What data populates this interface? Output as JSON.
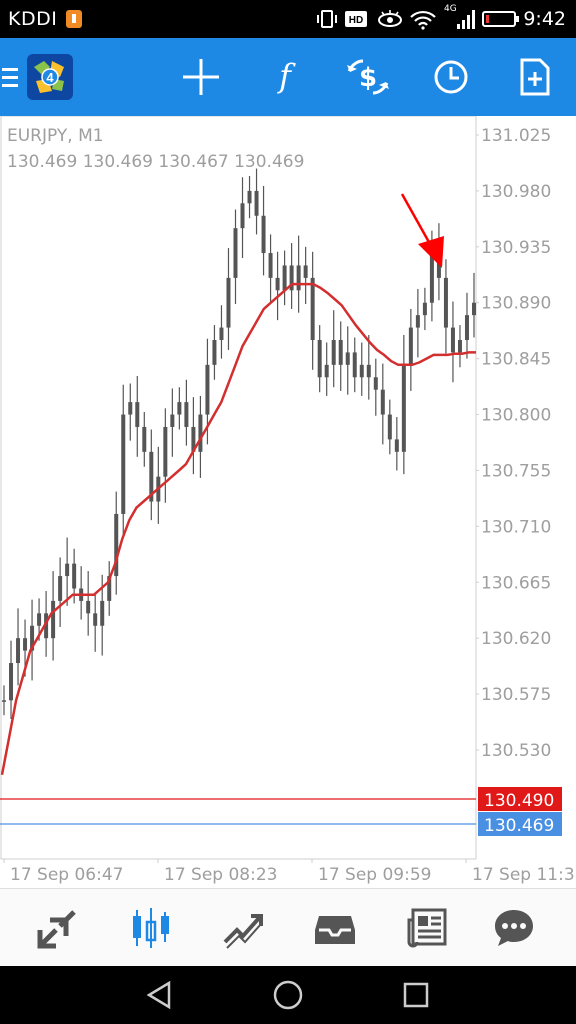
{
  "status_bar": {
    "carrier": "KDDI",
    "network": "4G",
    "time": "9:42"
  },
  "toolbar": {
    "menu_icon": "hamburger-menu-icon",
    "logo": "metatrader-4-logo",
    "items": [
      {
        "name": "crosshair-icon"
      },
      {
        "name": "indicators-icon"
      },
      {
        "name": "trade-icon"
      },
      {
        "name": "timeframe-icon"
      },
      {
        "name": "new-order-icon"
      }
    ]
  },
  "chart": {
    "symbol_title": "EURJPY, M1",
    "ohlc": "130.469 130.469 130.467 130.469",
    "price_labels": [
      "131.025",
      "130.980",
      "130.935",
      "130.890",
      "130.845",
      "130.800",
      "130.755",
      "130.710",
      "130.665",
      "130.620",
      "130.575",
      "130.530"
    ],
    "time_labels": [
      "17 Sep 06:47",
      "17 Sep 08:23",
      "17 Sep 09:59",
      "17 Sep 11:3"
    ],
    "markers": {
      "red_line": {
        "value": "130.490",
        "color": "#e01818"
      },
      "bid_line": {
        "value": "130.469",
        "color": "#4a90e2"
      }
    },
    "colors": {
      "candle": "#555555",
      "ma": "#d32f2f",
      "grid": "#e6e6e6",
      "arrow": "#ff0000"
    }
  },
  "chart_data": {
    "type": "line",
    "xlabel": "",
    "ylabel": "",
    "ylim": [
      130.49,
      131.04
    ],
    "x_ticks": [
      "17 Sep 06:47",
      "17 Sep 08:23",
      "17 Sep 09:59",
      "17 Sep 11:3"
    ],
    "y_ticks": [
      131.025,
      130.98,
      130.935,
      130.89,
      130.845,
      130.8,
      130.755,
      130.71,
      130.665,
      130.62,
      130.575,
      130.53
    ],
    "series": [
      {
        "values": [
          130.57,
          130.6,
          130.62,
          130.61,
          130.63,
          130.64,
          130.62,
          130.65,
          130.67,
          130.68,
          130.66,
          130.65,
          130.64,
          130.63,
          130.65,
          130.67,
          130.72,
          130.8,
          130.81,
          130.79,
          130.77,
          130.73,
          130.75,
          130.79,
          130.8,
          130.81,
          130.79,
          130.77,
          130.8,
          130.84,
          130.86,
          130.87,
          130.91,
          130.95,
          130.97,
          130.98,
          130.96,
          130.93,
          130.91,
          130.9,
          130.92,
          130.9,
          130.92,
          130.91,
          130.86,
          130.83,
          130.84,
          130.86,
          130.84,
          130.85,
          130.83,
          130.84,
          130.83,
          130.82,
          130.8,
          130.78,
          130.77,
          130.84,
          130.87,
          130.88,
          130.89,
          130.93,
          130.91,
          130.87,
          130.85,
          130.86,
          130.88,
          130.89
        ]
      },
      {
        "values": [
          130.51,
          130.54,
          130.57,
          130.59,
          130.61,
          130.62,
          130.63,
          130.64,
          130.645,
          130.65,
          130.655,
          130.655,
          130.655,
          130.655,
          130.66,
          130.665,
          130.68,
          130.7,
          130.715,
          130.725,
          130.73,
          130.735,
          130.74,
          130.745,
          130.75,
          130.755,
          130.76,
          130.77,
          130.78,
          130.79,
          130.8,
          130.81,
          130.825,
          130.84,
          130.855,
          130.865,
          130.875,
          130.885,
          130.89,
          130.895,
          130.9,
          130.905,
          130.905,
          130.905,
          130.905,
          130.902,
          130.898,
          130.893,
          130.888,
          130.88,
          130.872,
          130.865,
          130.858,
          130.852,
          130.848,
          130.843,
          130.84,
          130.84,
          130.84,
          130.842,
          130.845,
          130.848,
          130.848,
          130.848,
          130.849,
          130.849,
          130.85,
          130.85
        ]
      }
    ]
  },
  "bottom_nav": {
    "items": [
      {
        "name": "quotes-icon"
      },
      {
        "name": "chart-icon",
        "active": true
      },
      {
        "name": "trade-nav-icon"
      },
      {
        "name": "history-icon"
      },
      {
        "name": "news-icon"
      },
      {
        "name": "chat-icon"
      }
    ],
    "active_color": "#1e88e5",
    "inactive_color": "#555555"
  }
}
